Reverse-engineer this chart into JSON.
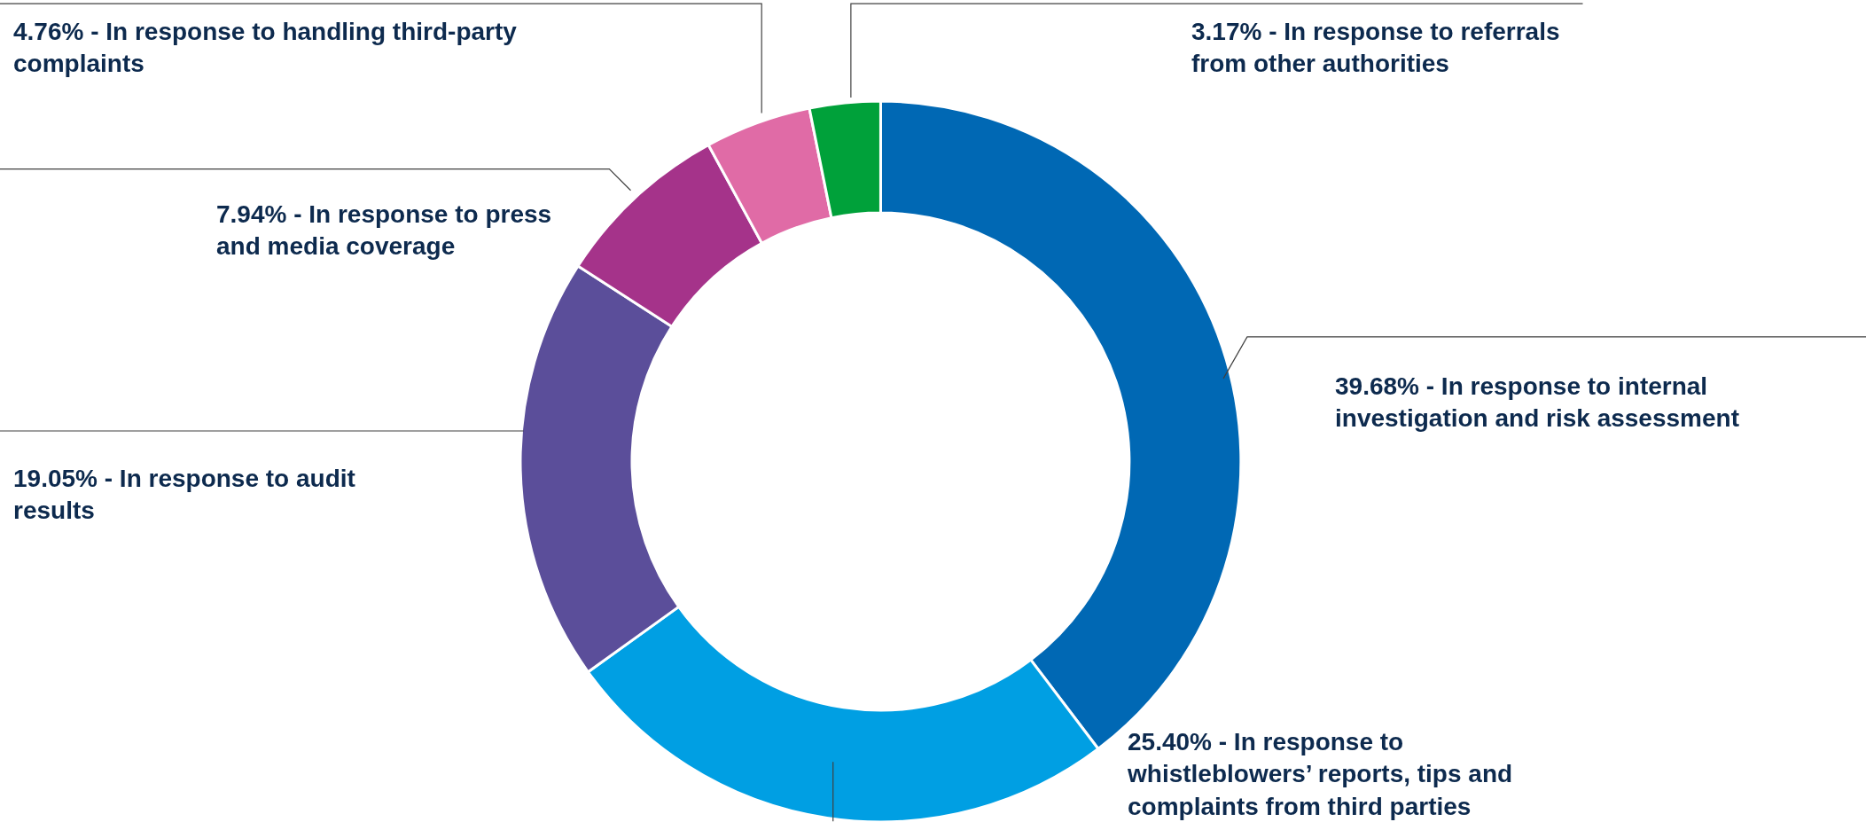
{
  "chart_data": {
    "type": "donut",
    "categories": [
      "39.68% - In response to internal investigation and risk assessment",
      "25.40% - In response to whistleblowers’ reports, tips and complaints from third parties",
      "19.05% - In response to audit results",
      "7.94% - In response to press and media coverage",
      "4.76% - In response to handling third-party complaints",
      "3.17% - In response to referrals from other authorities"
    ],
    "values": [
      39.68,
      25.4,
      19.05,
      7.94,
      4.76,
      3.17
    ],
    "colors": [
      "#0068b4",
      "#009fe3",
      "#5b4e9a",
      "#a5338a",
      "#e06ba6",
      "#00a13a"
    ],
    "legend": false
  }
}
